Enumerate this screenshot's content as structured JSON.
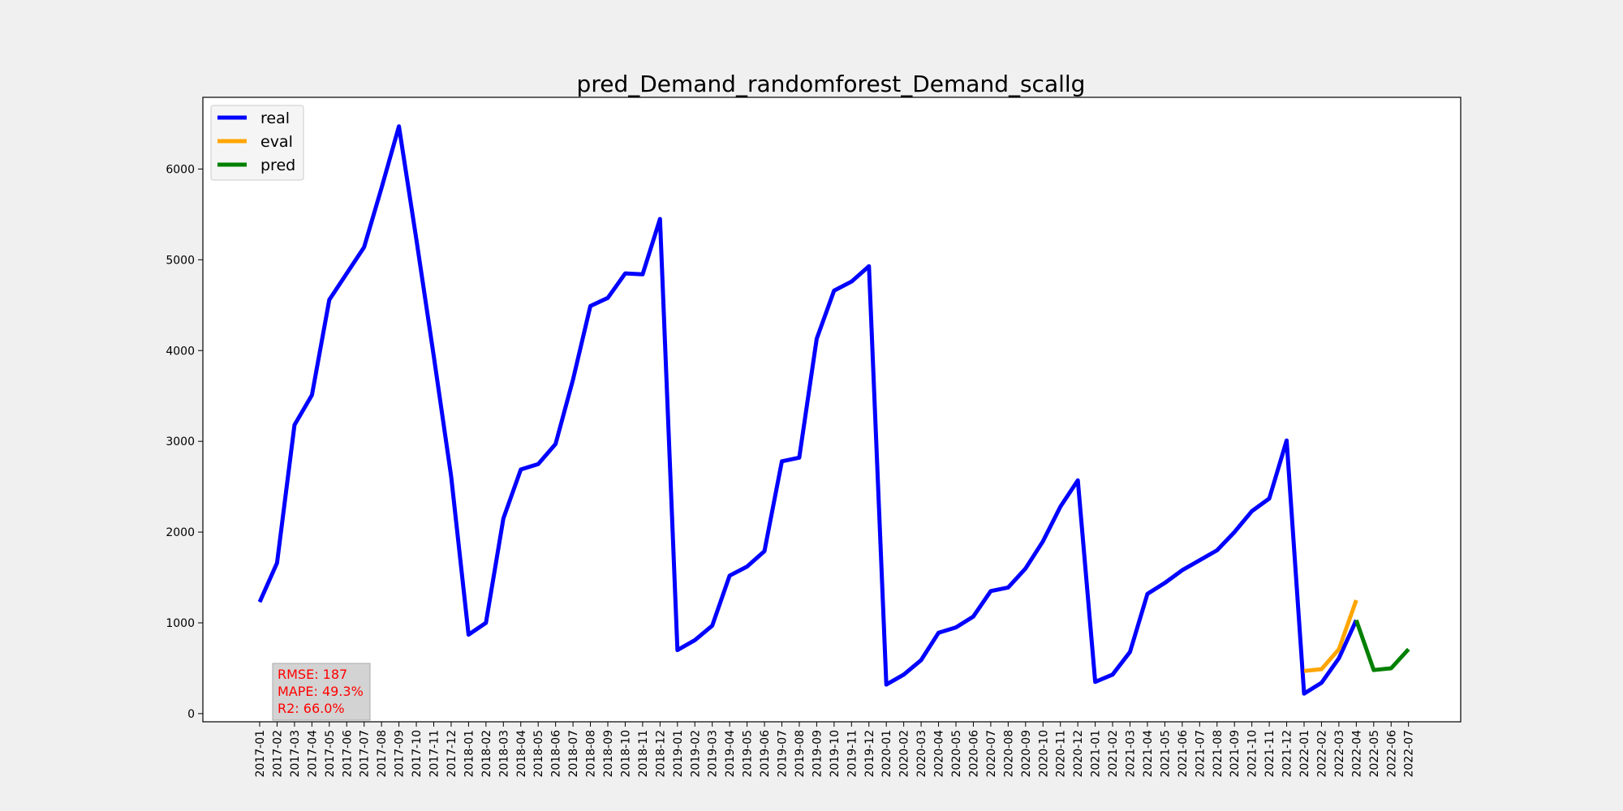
{
  "chart_data": {
    "type": "line",
    "title": "pred_Demand_randomforest_Demand_scallg",
    "xlabel": "",
    "ylabel": "",
    "ylim": [
      -90,
      6790
    ],
    "yticks": [
      0,
      1000,
      2000,
      3000,
      4000,
      5000,
      6000
    ],
    "grid": false,
    "legend_position": "top-left",
    "categories": [
      "2017-01",
      "2017-02",
      "2017-03",
      "2017-04",
      "2017-05",
      "2017-06",
      "2017-07",
      "2017-08",
      "2017-09",
      "2017-10",
      "2017-11",
      "2017-12",
      "2018-01",
      "2018-02",
      "2018-03",
      "2018-04",
      "2018-05",
      "2018-06",
      "2018-07",
      "2018-08",
      "2018-09",
      "2018-10",
      "2018-11",
      "2018-12",
      "2019-01",
      "2019-02",
      "2019-03",
      "2019-04",
      "2019-05",
      "2019-06",
      "2019-07",
      "2019-08",
      "2019-09",
      "2019-10",
      "2019-11",
      "2019-12",
      "2020-01",
      "2020-02",
      "2020-03",
      "2020-04",
      "2020-05",
      "2020-06",
      "2020-07",
      "2020-08",
      "2020-09",
      "2020-10",
      "2020-11",
      "2020-12",
      "2021-01",
      "2021-02",
      "2021-03",
      "2021-04",
      "2021-05",
      "2021-06",
      "2021-07",
      "2021-08",
      "2021-09",
      "2021-10",
      "2021-11",
      "2021-12",
      "2022-01",
      "2022-02",
      "2022-03",
      "2022-04",
      "2022-05",
      "2022-06",
      "2022-07"
    ],
    "series": [
      {
        "name": "real",
        "color": "#0000ff",
        "x": [
          "2017-01",
          "2017-02",
          "2017-03",
          "2017-04",
          "2017-05",
          "2017-06",
          "2017-07",
          "2017-08",
          "2017-09",
          "2017-10",
          "2017-11",
          "2017-12",
          "2018-01",
          "2018-02",
          "2018-03",
          "2018-04",
          "2018-05",
          "2018-06",
          "2018-07",
          "2018-08",
          "2018-09",
          "2018-10",
          "2018-11",
          "2018-12",
          "2019-01",
          "2019-02",
          "2019-03",
          "2019-04",
          "2019-05",
          "2019-06",
          "2019-07",
          "2019-08",
          "2019-09",
          "2019-10",
          "2019-11",
          "2019-12",
          "2020-01",
          "2020-02",
          "2020-03",
          "2020-04",
          "2020-05",
          "2020-06",
          "2020-07",
          "2020-08",
          "2020-09",
          "2020-10",
          "2020-11",
          "2020-12",
          "2021-01",
          "2021-02",
          "2021-03",
          "2021-04",
          "2021-05",
          "2021-06",
          "2021-07",
          "2021-08",
          "2021-09",
          "2021-10",
          "2021-11",
          "2021-12",
          "2022-01",
          "2022-02",
          "2022-03",
          "2022-04"
        ],
        "values": [
          1230,
          1660,
          3180,
          3510,
          4560,
          4850,
          5140,
          5790,
          6470,
          5230,
          3940,
          2610,
          870,
          1000,
          2150,
          2690,
          2750,
          2970,
          3680,
          4490,
          4580,
          4850,
          4840,
          5450,
          700,
          810,
          970,
          1520,
          1620,
          1790,
          2780,
          2820,
          4130,
          4660,
          4760,
          4930,
          320,
          430,
          590,
          890,
          950,
          1070,
          1350,
          1390,
          1600,
          1900,
          2280,
          2570,
          350,
          430,
          680,
          1320,
          1440,
          1580,
          1690,
          1800,
          2000,
          2230,
          2370,
          3010,
          220,
          340,
          610,
          1030
        ]
      },
      {
        "name": "eval",
        "color": "#ffa500",
        "x": [
          "2022-01",
          "2022-02",
          "2022-03",
          "2022-04"
        ],
        "values": [
          470,
          490,
          710,
          1250
        ]
      },
      {
        "name": "pred",
        "color": "#008000",
        "x": [
          "2022-04",
          "2022-05",
          "2022-06",
          "2022-07"
        ],
        "values": [
          1030,
          480,
          500,
          710
        ]
      }
    ],
    "metrics": {
      "lines": [
        "RMSE: 187",
        "MAPE: 49.3%",
        "R2: 66.0%"
      ],
      "color": "#ff0000",
      "background": "#d3d3d3"
    }
  }
}
